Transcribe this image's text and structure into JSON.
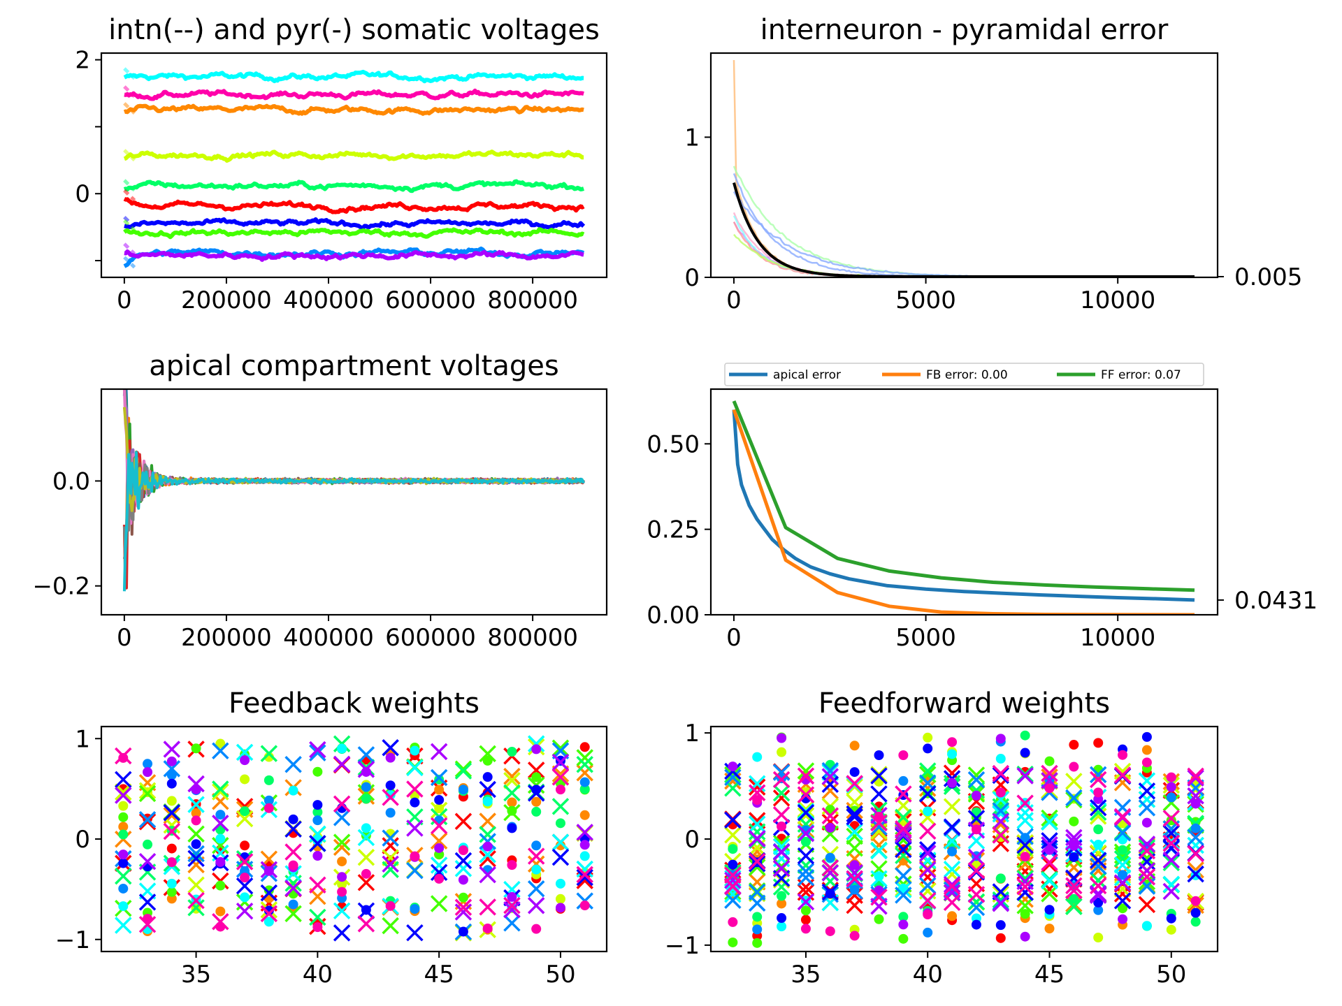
{
  "chart_data": [
    {
      "id": "somatic",
      "type": "line",
      "title": "intn(--) and pyr(-) somatic voltages",
      "x_range": [
        0,
        900000
      ],
      "xlim": [
        -45000,
        945000
      ],
      "ylim": [
        -1.25,
        2.1
      ],
      "x_ticks": [
        0,
        200000,
        400000,
        600000,
        800000
      ],
      "x_tick_labels": [
        "0",
        "200000",
        "400000",
        "600000",
        "800000"
      ],
      "y_ticks": [
        -1,
        0,
        1,
        2
      ],
      "y_tick_labels": [
        "",
        "0",
        "",
        "2"
      ],
      "series": [
        {
          "color": "#00ffff",
          "level": 1.75,
          "start": 1.72
        },
        {
          "color": "#ff00aa",
          "level": 1.48,
          "start": 1.45
        },
        {
          "color": "#ff8800",
          "level": 1.25,
          "start": 1.2
        },
        {
          "color": "#ccff00",
          "level": 0.58,
          "start": 0.5
        },
        {
          "color": "#00ff66",
          "level": 0.12,
          "start": 0.05
        },
        {
          "color": "#ff0000",
          "level": -0.18,
          "start": -0.1
        },
        {
          "color": "#0000ff",
          "level": -0.45,
          "start": -0.5
        },
        {
          "color": "#44ff00",
          "level": -0.58,
          "start": -0.55
        },
        {
          "color": "#0088ff",
          "level": -0.88,
          "start": -1.1
        },
        {
          "color": "#aa00ff",
          "level": -0.92,
          "start": -0.9
        }
      ]
    },
    {
      "id": "intn_error",
      "type": "line",
      "title": "interneuron - pyramidal error",
      "x_range": [
        0,
        12000
      ],
      "xlim": [
        -600,
        12600
      ],
      "ylim": [
        0,
        1.6
      ],
      "x_ticks": [
        0,
        5000,
        10000
      ],
      "x_tick_labels": [
        "0",
        "5000",
        "10000"
      ],
      "y_ticks": [
        0,
        1
      ],
      "y_tick_labels": [
        "0",
        "1"
      ],
      "right_tick_value": 0.005,
      "right_tick_label": "0.005",
      "mean_color": "#000000",
      "start_peak": 0.67,
      "series_colors": [
        "#ffbb77",
        "#88aaff",
        "#aaffaa",
        "#ffaacc",
        "#cc88ff",
        "#88ffff",
        "#ff9999",
        "#bbff66"
      ]
    },
    {
      "id": "apical",
      "type": "line",
      "title": "apical compartment voltages",
      "x_range": [
        0,
        900000
      ],
      "xlim": [
        -45000,
        945000
      ],
      "ylim": [
        -0.255,
        0.175
      ],
      "x_ticks": [
        0,
        200000,
        400000,
        600000,
        800000
      ],
      "x_tick_labels": [
        "0",
        "200000",
        "400000",
        "600000",
        "800000"
      ],
      "y_ticks": [
        -0.2,
        0.0
      ],
      "y_tick_labels": [
        "−0.2",
        "0.0"
      ],
      "series_colors": [
        "#1f77b4",
        "#ff7f0e",
        "#2ca02c",
        "#d62728",
        "#9467bd",
        "#8c564b",
        "#e377c2",
        "#7f7f7f",
        "#bcbd22",
        "#17becf"
      ]
    },
    {
      "id": "errors",
      "type": "line",
      "title": "",
      "xlim": [
        -600,
        12600
      ],
      "ylim": [
        0,
        0.66
      ],
      "x_ticks": [
        0,
        5000,
        10000
      ],
      "x_tick_labels": [
        "0",
        "5000",
        "10000"
      ],
      "y_ticks": [
        0,
        0.25,
        0.5
      ],
      "y_tick_labels": [
        "0.00",
        "0.25",
        "0.50"
      ],
      "right_tick_value": 0.0431,
      "right_tick_label": "0.0431",
      "legend": [
        "apical error",
        "FB error: 0.00",
        "FF error: 0.07"
      ],
      "series": [
        {
          "name": "apical error",
          "color": "#1f77b4",
          "x": [
            0,
            100,
            200,
            400,
            600,
            800,
            1000,
            1300,
            1600,
            2000,
            2500,
            3000,
            3500,
            4000,
            5000,
            6000,
            7000,
            8000,
            9000,
            10000,
            11000,
            12000
          ],
          "y": [
            0.6,
            0.44,
            0.38,
            0.32,
            0.28,
            0.25,
            0.22,
            0.19,
            0.165,
            0.14,
            0.12,
            0.105,
            0.095,
            0.085,
            0.075,
            0.068,
            0.063,
            0.058,
            0.054,
            0.05,
            0.047,
            0.0431
          ]
        },
        {
          "name": "FB error: 0.00",
          "color": "#ff7f0e",
          "x": [
            0,
            1350,
            2700,
            4050,
            5400,
            6750,
            8100,
            9450,
            10800,
            12000
          ],
          "y": [
            0.6,
            0.16,
            0.065,
            0.025,
            0.008,
            0.003,
            0.001,
            0.0005,
            0.0002,
            0.0
          ]
        },
        {
          "name": "FF error: 0.07",
          "color": "#2ca02c",
          "x": [
            0,
            1350,
            2700,
            4050,
            5400,
            6750,
            8100,
            9450,
            10800,
            12000
          ],
          "y": [
            0.625,
            0.255,
            0.165,
            0.128,
            0.108,
            0.095,
            0.087,
            0.081,
            0.076,
            0.072
          ]
        }
      ]
    },
    {
      "id": "fb_weights",
      "type": "scatter",
      "title": "Feedback weights",
      "marker": "x",
      "x_range": [
        32,
        51
      ],
      "xlim": [
        31.1,
        51.9
      ],
      "ylim": [
        -1.12,
        1.12
      ],
      "x_ticks": [
        35,
        40,
        45,
        50
      ],
      "x_tick_labels": [
        "35",
        "40",
        "45",
        "50"
      ],
      "y_ticks": [
        -1,
        0,
        1
      ],
      "y_tick_labels": [
        "−1",
        "0",
        "1"
      ],
      "colors": [
        "#ff0000",
        "#ff8800",
        "#ccff00",
        "#44ff00",
        "#00ff66",
        "#00ffff",
        "#0088ff",
        "#0000ff",
        "#aa00ff",
        "#ff00aa"
      ]
    },
    {
      "id": "ff_weights",
      "type": "scatter",
      "title": "Feedforward weights",
      "marker": "x and dot",
      "x_range": [
        32,
        51
      ],
      "xlim": [
        31.1,
        51.9
      ],
      "ylim": [
        -1.06,
        1.06
      ],
      "x_ticks": [
        35,
        40,
        45,
        50
      ],
      "x_tick_labels": [
        "35",
        "40",
        "45",
        "50"
      ],
      "y_ticks": [
        -1,
        0,
        1
      ],
      "y_tick_labels": [
        "−1",
        "0",
        "1"
      ],
      "colors": [
        "#ff0000",
        "#ff8800",
        "#ccff00",
        "#44ff00",
        "#00ff66",
        "#00ffff",
        "#0088ff",
        "#0000ff",
        "#aa00ff",
        "#ff00aa"
      ]
    }
  ]
}
